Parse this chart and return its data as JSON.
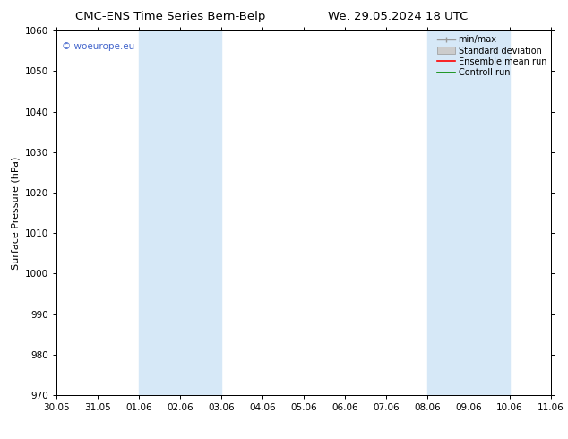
{
  "title_left": "CMC-ENS Time Series Bern-Belp",
  "title_right": "We. 29.05.2024 18 UTC",
  "ylabel": "Surface Pressure (hPa)",
  "ylim": [
    970,
    1060
  ],
  "yticks": [
    970,
    980,
    990,
    1000,
    1010,
    1020,
    1030,
    1040,
    1050,
    1060
  ],
  "xtick_labels": [
    "30.05",
    "31.05",
    "01.06",
    "02.06",
    "03.06",
    "04.06",
    "05.06",
    "06.06",
    "07.06",
    "08.06",
    "09.06",
    "10.06",
    "11.06"
  ],
  "shaded_bands": [
    {
      "x_start": "01.06",
      "x_end": "03.06"
    },
    {
      "x_start": "08.06",
      "x_end": "10.06"
    }
  ],
  "band_color": "#d6e8f7",
  "watermark": "© woeurope.eu",
  "watermark_color": "#4466cc",
  "legend_entries": [
    {
      "label": "min/max",
      "color": "#aaaaaa",
      "style": "line_with_caps"
    },
    {
      "label": "Standard deviation",
      "color": "#cccccc",
      "style": "filled"
    },
    {
      "label": "Ensemble mean run",
      "color": "#ff0000",
      "style": "line"
    },
    {
      "label": "Controll run",
      "color": "#008000",
      "style": "line"
    }
  ],
  "background_color": "#ffffff",
  "grid_color": "#dddddd",
  "title_fontsize": 9.5,
  "tick_fontsize": 7.5,
  "ylabel_fontsize": 8,
  "legend_fontsize": 7,
  "watermark_fontsize": 7.5
}
